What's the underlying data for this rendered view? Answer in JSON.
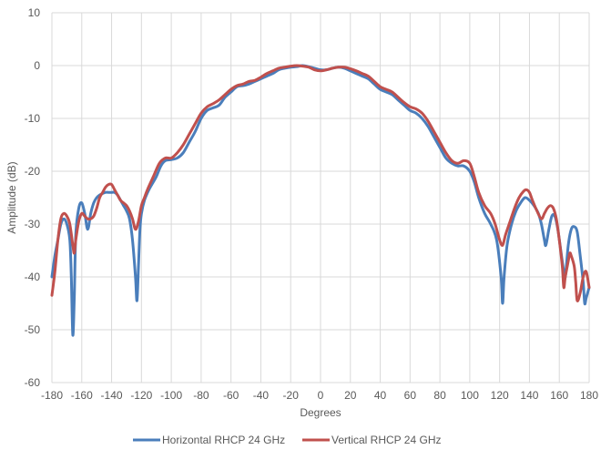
{
  "chart_data": {
    "type": "line",
    "title": "",
    "xlabel": "Degrees",
    "ylabel": "Amplitude (dB)",
    "xlim": [
      -180,
      180
    ],
    "ylim": [
      -60,
      10
    ],
    "x_ticks": [
      -180,
      -160,
      -140,
      -120,
      -100,
      -80,
      -60,
      -40,
      -20,
      0,
      20,
      40,
      60,
      80,
      100,
      120,
      140,
      160,
      180
    ],
    "y_ticks": [
      10,
      0,
      -10,
      -20,
      -30,
      -40,
      -50,
      -60
    ],
    "grid": true,
    "legend_position": "bottom",
    "series": [
      {
        "name": "Horizontal RHCP 24 GHz",
        "color": "#4A7EBB",
        "points": [
          [
            -180,
            -40
          ],
          [
            -178,
            -36
          ],
          [
            -176,
            -33
          ],
          [
            -174,
            -30
          ],
          [
            -172,
            -29
          ],
          [
            -170,
            -30
          ],
          [
            -168,
            -33
          ],
          [
            -167,
            -40
          ],
          [
            -166,
            -51
          ],
          [
            -165,
            -44
          ],
          [
            -164,
            -32
          ],
          [
            -162,
            -27
          ],
          [
            -160,
            -26
          ],
          [
            -158,
            -28
          ],
          [
            -156,
            -31
          ],
          [
            -154,
            -28
          ],
          [
            -152,
            -26
          ],
          [
            -150,
            -25
          ],
          [
            -148,
            -24.5
          ],
          [
            -146,
            -24.2
          ],
          [
            -144,
            -24
          ],
          [
            -142,
            -24
          ],
          [
            -140,
            -24
          ],
          [
            -138,
            -24
          ],
          [
            -136,
            -24.5
          ],
          [
            -134,
            -25.5
          ],
          [
            -132,
            -26.5
          ],
          [
            -130,
            -27.5
          ],
          [
            -128,
            -29
          ],
          [
            -126,
            -33
          ],
          [
            -124,
            -40
          ],
          [
            -123,
            -44.5
          ],
          [
            -122,
            -38
          ],
          [
            -121,
            -31
          ],
          [
            -120,
            -28
          ],
          [
            -118,
            -25.5
          ],
          [
            -115,
            -23.5
          ],
          [
            -112,
            -22
          ],
          [
            -110,
            -21
          ],
          [
            -107,
            -19
          ],
          [
            -104,
            -18
          ],
          [
            -100,
            -17.8
          ],
          [
            -96,
            -17.5
          ],
          [
            -92,
            -16.5
          ],
          [
            -88,
            -14.5
          ],
          [
            -84,
            -12.5
          ],
          [
            -80,
            -10
          ],
          [
            -76,
            -8.5
          ],
          [
            -72,
            -8
          ],
          [
            -68,
            -7.5
          ],
          [
            -64,
            -6
          ],
          [
            -60,
            -5
          ],
          [
            -56,
            -4
          ],
          [
            -52,
            -3.8
          ],
          [
            -48,
            -3.5
          ],
          [
            -44,
            -3
          ],
          [
            -40,
            -2.5
          ],
          [
            -36,
            -2
          ],
          [
            -32,
            -1.5
          ],
          [
            -28,
            -0.8
          ],
          [
            -24,
            -0.5
          ],
          [
            -20,
            -0.3
          ],
          [
            -16,
            -0.2
          ],
          [
            -12,
            0
          ],
          [
            -8,
            -0.2
          ],
          [
            -4,
            -0.5
          ],
          [
            0,
            -0.8
          ],
          [
            4,
            -0.8
          ],
          [
            8,
            -0.5
          ],
          [
            12,
            -0.3
          ],
          [
            16,
            -0.5
          ],
          [
            20,
            -1
          ],
          [
            24,
            -1.5
          ],
          [
            28,
            -2
          ],
          [
            32,
            -2.5
          ],
          [
            36,
            -3.5
          ],
          [
            40,
            -4.5
          ],
          [
            44,
            -5
          ],
          [
            48,
            -5.5
          ],
          [
            52,
            -6.5
          ],
          [
            56,
            -7.5
          ],
          [
            60,
            -8.5
          ],
          [
            64,
            -9
          ],
          [
            68,
            -10
          ],
          [
            72,
            -11.5
          ],
          [
            76,
            -13.5
          ],
          [
            80,
            -15.5
          ],
          [
            84,
            -17.5
          ],
          [
            88,
            -18.5
          ],
          [
            92,
            -19
          ],
          [
            96,
            -19
          ],
          [
            100,
            -20
          ],
          [
            103,
            -22
          ],
          [
            106,
            -25
          ],
          [
            110,
            -28
          ],
          [
            114,
            -30
          ],
          [
            118,
            -33
          ],
          [
            121,
            -40
          ],
          [
            122,
            -45
          ],
          [
            123,
            -40
          ],
          [
            125,
            -34
          ],
          [
            128,
            -30
          ],
          [
            131,
            -27.5
          ],
          [
            134,
            -26
          ],
          [
            137,
            -25
          ],
          [
            140,
            -25.5
          ],
          [
            143,
            -26.5
          ],
          [
            146,
            -28
          ],
          [
            148,
            -30
          ],
          [
            150,
            -33
          ],
          [
            151,
            -34
          ],
          [
            153,
            -31
          ],
          [
            155,
            -28.5
          ],
          [
            157,
            -28.5
          ],
          [
            159,
            -31
          ],
          [
            161,
            -35
          ],
          [
            163,
            -39
          ],
          [
            164,
            -40
          ],
          [
            166,
            -34
          ],
          [
            168,
            -31
          ],
          [
            170,
            -30.5
          ],
          [
            172,
            -31.5
          ],
          [
            174,
            -36
          ],
          [
            176,
            -41
          ],
          [
            177,
            -45
          ],
          [
            178,
            -44
          ],
          [
            180,
            -42
          ]
        ]
      },
      {
        "name": "Vertical RHCP 24 GHz",
        "color": "#C0504D",
        "points": [
          [
            -180,
            -43.5
          ],
          [
            -178,
            -39
          ],
          [
            -176,
            -33
          ],
          [
            -174,
            -29
          ],
          [
            -172,
            -28
          ],
          [
            -170,
            -28.5
          ],
          [
            -168,
            -30
          ],
          [
            -166,
            -34
          ],
          [
            -165,
            -35.5
          ],
          [
            -164,
            -33
          ],
          [
            -162,
            -29.5
          ],
          [
            -160,
            -28
          ],
          [
            -158,
            -28.5
          ],
          [
            -156,
            -29
          ],
          [
            -154,
            -29
          ],
          [
            -152,
            -28.5
          ],
          [
            -150,
            -27
          ],
          [
            -148,
            -25
          ],
          [
            -146,
            -24
          ],
          [
            -144,
            -23
          ],
          [
            -142,
            -22.5
          ],
          [
            -140,
            -22.5
          ],
          [
            -138,
            -23.5
          ],
          [
            -136,
            -24.5
          ],
          [
            -134,
            -25.5
          ],
          [
            -132,
            -26
          ],
          [
            -130,
            -26.5
          ],
          [
            -128,
            -27.5
          ],
          [
            -126,
            -29
          ],
          [
            -124,
            -31
          ],
          [
            -122,
            -29.5
          ],
          [
            -120,
            -26.5
          ],
          [
            -118,
            -25
          ],
          [
            -116,
            -23.5
          ],
          [
            -112,
            -21
          ],
          [
            -108,
            -18.5
          ],
          [
            -104,
            -17.5
          ],
          [
            -100,
            -17.5
          ],
          [
            -96,
            -16.5
          ],
          [
            -92,
            -15
          ],
          [
            -88,
            -13
          ],
          [
            -84,
            -11
          ],
          [
            -80,
            -9
          ],
          [
            -76,
            -7.8
          ],
          [
            -72,
            -7.2
          ],
          [
            -68,
            -6.5
          ],
          [
            -64,
            -5.5
          ],
          [
            -60,
            -4.5
          ],
          [
            -56,
            -3.8
          ],
          [
            -52,
            -3.5
          ],
          [
            -48,
            -3
          ],
          [
            -44,
            -2.8
          ],
          [
            -40,
            -2.2
          ],
          [
            -36,
            -1.5
          ],
          [
            -32,
            -1
          ],
          [
            -28,
            -0.5
          ],
          [
            -24,
            -0.3
          ],
          [
            -20,
            -0.1
          ],
          [
            -16,
            0
          ],
          [
            -12,
            -0.1
          ],
          [
            -8,
            -0.3
          ],
          [
            -4,
            -0.8
          ],
          [
            0,
            -1
          ],
          [
            4,
            -0.8
          ],
          [
            8,
            -0.5
          ],
          [
            12,
            -0.3
          ],
          [
            16,
            -0.3
          ],
          [
            20,
            -0.6
          ],
          [
            24,
            -1
          ],
          [
            28,
            -1.5
          ],
          [
            32,
            -2
          ],
          [
            36,
            -3
          ],
          [
            40,
            -4
          ],
          [
            44,
            -4.5
          ],
          [
            48,
            -5
          ],
          [
            52,
            -6
          ],
          [
            56,
            -7
          ],
          [
            60,
            -7.8
          ],
          [
            64,
            -8.2
          ],
          [
            68,
            -9
          ],
          [
            72,
            -10.5
          ],
          [
            76,
            -12.5
          ],
          [
            80,
            -14.5
          ],
          [
            84,
            -16.5
          ],
          [
            88,
            -18
          ],
          [
            92,
            -18.5
          ],
          [
            96,
            -18
          ],
          [
            100,
            -18.5
          ],
          [
            103,
            -21
          ],
          [
            106,
            -24
          ],
          [
            110,
            -26.5
          ],
          [
            114,
            -28
          ],
          [
            117,
            -30
          ],
          [
            120,
            -33
          ],
          [
            122,
            -34
          ],
          [
            124,
            -32
          ],
          [
            127,
            -29.5
          ],
          [
            130,
            -27
          ],
          [
            133,
            -25
          ],
          [
            136,
            -23.8
          ],
          [
            138,
            -23.5
          ],
          [
            140,
            -24
          ],
          [
            142,
            -25.5
          ],
          [
            145,
            -27.5
          ],
          [
            148,
            -29
          ],
          [
            150,
            -28
          ],
          [
            152,
            -27
          ],
          [
            154,
            -26.5
          ],
          [
            156,
            -27
          ],
          [
            158,
            -29
          ],
          [
            160,
            -33
          ],
          [
            162,
            -38
          ],
          [
            163,
            -42
          ],
          [
            164,
            -40
          ],
          [
            166,
            -37
          ],
          [
            167,
            -35.5
          ],
          [
            168,
            -36
          ],
          [
            170,
            -38
          ],
          [
            171,
            -41
          ],
          [
            172,
            -44.5
          ],
          [
            174,
            -43
          ],
          [
            176,
            -40
          ],
          [
            178,
            -39
          ],
          [
            180,
            -42
          ]
        ]
      }
    ]
  }
}
